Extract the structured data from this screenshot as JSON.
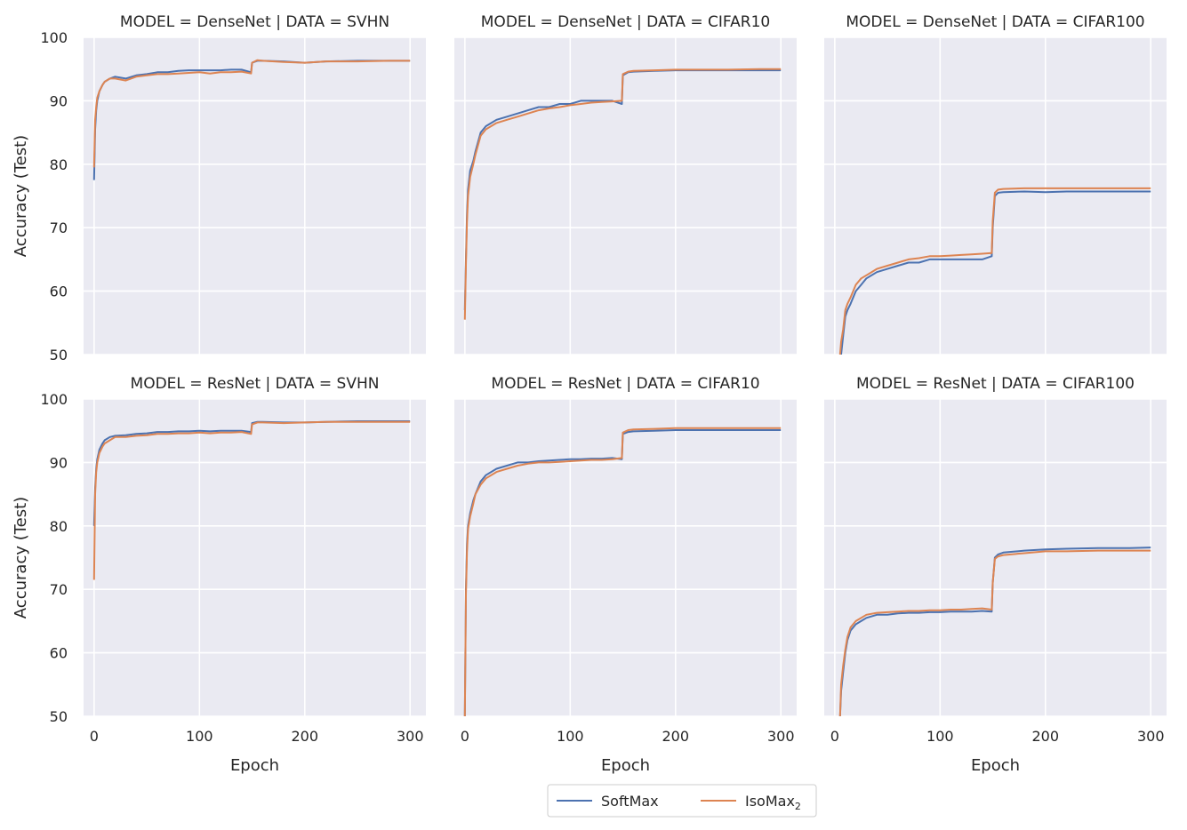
{
  "colors": {
    "softmax": "#4c72b0",
    "isomax": "#dd8452",
    "panel_bg": "#eaeaf2",
    "grid": "#ffffff"
  },
  "legend": {
    "softmax": "SoftMax",
    "isomax_base": "IsoMax",
    "isomax_sub": "2"
  },
  "chart_data": [
    {
      "type": "line",
      "title": "MODEL = DenseNet | DATA = SVHN",
      "xlabel": "",
      "ylabel": "Accuracy (Test)",
      "xlim": [
        -10,
        315
      ],
      "ylim": [
        50,
        100
      ],
      "series": [
        {
          "name": "SoftMax",
          "x": [
            0,
            1,
            2,
            3,
            5,
            8,
            10,
            15,
            20,
            30,
            40,
            50,
            60,
            70,
            80,
            90,
            100,
            110,
            120,
            130,
            140,
            149,
            150,
            155,
            160,
            180,
            200,
            220,
            250,
            280,
            300
          ],
          "values": [
            77.5,
            85.5,
            88.5,
            90,
            91.5,
            92.5,
            93,
            93.5,
            93.8,
            93.5,
            94,
            94.2,
            94.5,
            94.5,
            94.7,
            94.8,
            94.8,
            94.8,
            94.8,
            94.9,
            94.9,
            94.5,
            96,
            96.3,
            96.3,
            96.2,
            96,
            96.2,
            96.3,
            96.3,
            96.3
          ]
        },
        {
          "name": "IsoMax2",
          "x": [
            0,
            1,
            2,
            3,
            5,
            8,
            10,
            15,
            20,
            30,
            40,
            50,
            60,
            70,
            80,
            90,
            100,
            110,
            120,
            130,
            140,
            149,
            150,
            155,
            160,
            180,
            200,
            220,
            250,
            280,
            300
          ],
          "values": [
            79.5,
            87,
            89,
            90.5,
            91.5,
            92.5,
            93,
            93.5,
            93.5,
            93.2,
            93.8,
            94,
            94.2,
            94.2,
            94.3,
            94.4,
            94.5,
            94.3,
            94.5,
            94.5,
            94.6,
            94.3,
            96,
            96.4,
            96.3,
            96.1,
            96,
            96.2,
            96.2,
            96.3,
            96.3
          ]
        }
      ]
    },
    {
      "type": "line",
      "title": "MODEL = DenseNet | DATA = CIFAR10",
      "xlabel": "",
      "ylabel": "",
      "xlim": [
        -10,
        315
      ],
      "ylim": [
        50,
        100
      ],
      "series": [
        {
          "name": "SoftMax",
          "x": [
            0,
            1,
            2,
            3,
            5,
            8,
            10,
            15,
            20,
            30,
            40,
            50,
            60,
            70,
            80,
            90,
            100,
            110,
            120,
            130,
            140,
            149,
            150,
            155,
            160,
            180,
            200,
            220,
            250,
            280,
            300
          ],
          "values": [
            57,
            65,
            72,
            76,
            79,
            80.5,
            82,
            85,
            86,
            87,
            87.5,
            88,
            88.5,
            89,
            89,
            89.5,
            89.5,
            90,
            90,
            90,
            90,
            89.5,
            94,
            94.5,
            94.6,
            94.7,
            94.8,
            94.8,
            94.8,
            94.8,
            94.8
          ]
        },
        {
          "name": "IsoMax2",
          "x": [
            0,
            1,
            2,
            3,
            5,
            8,
            10,
            15,
            20,
            30,
            40,
            50,
            60,
            70,
            80,
            90,
            100,
            110,
            120,
            130,
            140,
            149,
            150,
            155,
            160,
            180,
            200,
            220,
            250,
            280,
            300
          ],
          "values": [
            55.5,
            64,
            71,
            75,
            78,
            80,
            81.5,
            84.5,
            85.5,
            86.5,
            87,
            87.5,
            88,
            88.5,
            88.8,
            89,
            89.3,
            89.5,
            89.7,
            89.8,
            89.9,
            90,
            94.2,
            94.6,
            94.7,
            94.8,
            94.9,
            94.9,
            94.9,
            95,
            95
          ]
        }
      ]
    },
    {
      "type": "line",
      "title": "MODEL = DenseNet | DATA = CIFAR100",
      "xlabel": "",
      "ylabel": "",
      "xlim": [
        -10,
        315
      ],
      "ylim": [
        50,
        100
      ],
      "series": [
        {
          "name": "SoftMax",
          "x": [
            5,
            6,
            8,
            10,
            12,
            15,
            20,
            25,
            30,
            40,
            50,
            60,
            70,
            80,
            90,
            100,
            110,
            120,
            130,
            140,
            149,
            150,
            152,
            155,
            160,
            180,
            200,
            220,
            250,
            280,
            300
          ],
          "values": [
            48,
            50,
            53,
            56,
            57,
            58,
            60,
            61,
            62,
            63,
            63.5,
            64,
            64.5,
            64.5,
            65,
            65,
            65,
            65,
            65,
            65,
            65.5,
            70,
            75,
            75.5,
            75.6,
            75.7,
            75.6,
            75.7,
            75.7,
            75.7,
            75.7
          ]
        },
        {
          "name": "IsoMax2",
          "x": [
            5,
            6,
            8,
            10,
            12,
            15,
            20,
            25,
            30,
            40,
            50,
            60,
            70,
            80,
            90,
            100,
            110,
            120,
            130,
            140,
            149,
            150,
            152,
            155,
            160,
            180,
            200,
            220,
            250,
            280,
            300
          ],
          "values": [
            50,
            52,
            54,
            57,
            58,
            59,
            61,
            62,
            62.5,
            63.5,
            64,
            64.5,
            65,
            65.2,
            65.5,
            65.5,
            65.6,
            65.7,
            65.8,
            65.9,
            66,
            71,
            75.5,
            76,
            76.1,
            76.2,
            76.2,
            76.2,
            76.2,
            76.2,
            76.2
          ]
        }
      ]
    },
    {
      "type": "line",
      "title": "MODEL = ResNet | DATA = SVHN",
      "xlabel": "Epoch",
      "ylabel": "Accuracy (Test)",
      "xlim": [
        -10,
        315
      ],
      "ylim": [
        50,
        100
      ],
      "series": [
        {
          "name": "SoftMax",
          "x": [
            0,
            1,
            2,
            3,
            5,
            8,
            10,
            15,
            20,
            30,
            40,
            50,
            60,
            70,
            80,
            90,
            100,
            110,
            120,
            130,
            140,
            149,
            150,
            155,
            160,
            180,
            200,
            220,
            250,
            280,
            300
          ],
          "values": [
            80,
            86,
            89,
            90.5,
            92,
            93,
            93.5,
            94,
            94.2,
            94.3,
            94.5,
            94.6,
            94.8,
            94.8,
            94.9,
            94.9,
            95,
            94.9,
            95,
            95,
            95,
            94.8,
            96.2,
            96.4,
            96.4,
            96.3,
            96.3,
            96.4,
            96.5,
            96.5,
            96.5
          ]
        },
        {
          "name": "IsoMax2",
          "x": [
            0,
            1,
            2,
            3,
            5,
            8,
            10,
            15,
            20,
            30,
            40,
            50,
            60,
            70,
            80,
            90,
            100,
            110,
            120,
            130,
            140,
            149,
            150,
            155,
            160,
            180,
            200,
            220,
            250,
            280,
            300
          ],
          "values": [
            71.5,
            85,
            88.5,
            90,
            91.5,
            92.5,
            93,
            93.5,
            94,
            94,
            94.2,
            94.3,
            94.5,
            94.5,
            94.6,
            94.6,
            94.7,
            94.6,
            94.7,
            94.7,
            94.8,
            94.5,
            96,
            96.3,
            96.3,
            96.2,
            96.3,
            96.4,
            96.4,
            96.4,
            96.4
          ]
        }
      ]
    },
    {
      "type": "line",
      "title": "MODEL = ResNet | DATA = CIFAR10",
      "xlabel": "Epoch",
      "ylabel": "",
      "xlim": [
        -10,
        315
      ],
      "ylim": [
        50,
        100
      ],
      "series": [
        {
          "name": "SoftMax",
          "x": [
            0,
            1,
            2,
            3,
            5,
            8,
            10,
            15,
            20,
            30,
            40,
            50,
            60,
            70,
            80,
            90,
            100,
            110,
            120,
            130,
            140,
            149,
            150,
            155,
            160,
            180,
            200,
            220,
            250,
            280,
            300
          ],
          "values": [
            50,
            70,
            77,
            80,
            82,
            84,
            85,
            87,
            88,
            89,
            89.5,
            90,
            90,
            90.2,
            90.3,
            90.4,
            90.5,
            90.5,
            90.6,
            90.6,
            90.7,
            90.5,
            94.5,
            94.8,
            94.9,
            95,
            95.1,
            95.1,
            95.1,
            95.1,
            95.1
          ]
        },
        {
          "name": "IsoMax2",
          "x": [
            0,
            1,
            2,
            3,
            5,
            8,
            10,
            15,
            20,
            30,
            40,
            50,
            60,
            70,
            80,
            90,
            100,
            110,
            120,
            130,
            140,
            149,
            150,
            155,
            160,
            180,
            200,
            220,
            250,
            280,
            300
          ],
          "values": [
            50,
            69,
            76,
            79.5,
            81.5,
            83.5,
            85,
            86.5,
            87.5,
            88.5,
            89,
            89.5,
            89.8,
            90,
            90,
            90.1,
            90.2,
            90.3,
            90.4,
            90.4,
            90.5,
            90.7,
            94.7,
            95.1,
            95.2,
            95.3,
            95.4,
            95.4,
            95.4,
            95.4,
            95.4
          ]
        }
      ]
    },
    {
      "type": "line",
      "title": "MODEL = ResNet | DATA = CIFAR100",
      "xlabel": "Epoch",
      "ylabel": "",
      "xlim": [
        -10,
        315
      ],
      "ylim": [
        50,
        100
      ],
      "series": [
        {
          "name": "SoftMax",
          "x": [
            5,
            6,
            8,
            10,
            12,
            15,
            20,
            25,
            30,
            40,
            50,
            60,
            70,
            80,
            90,
            100,
            110,
            120,
            130,
            140,
            149,
            150,
            152,
            155,
            160,
            180,
            200,
            220,
            250,
            280,
            300
          ],
          "values": [
            50,
            54,
            57,
            60,
            62,
            63.5,
            64.5,
            65,
            65.5,
            66,
            66,
            66.2,
            66.3,
            66.3,
            66.4,
            66.4,
            66.5,
            66.5,
            66.5,
            66.6,
            66.5,
            71,
            75,
            75.5,
            75.8,
            76.1,
            76.3,
            76.4,
            76.5,
            76.5,
            76.6
          ]
        },
        {
          "name": "IsoMax2",
          "x": [
            5,
            6,
            8,
            10,
            12,
            15,
            20,
            25,
            30,
            40,
            50,
            60,
            70,
            80,
            90,
            100,
            110,
            120,
            130,
            140,
            149,
            150,
            152,
            155,
            160,
            180,
            200,
            220,
            250,
            280,
            300
          ],
          "values": [
            50,
            55,
            58,
            60.5,
            62.5,
            64,
            65,
            65.5,
            66,
            66.3,
            66.4,
            66.5,
            66.6,
            66.6,
            66.7,
            66.7,
            66.8,
            66.8,
            66.9,
            67,
            66.8,
            71,
            74.8,
            75.2,
            75.4,
            75.7,
            76,
            76,
            76.1,
            76.1,
            76.1
          ]
        }
      ]
    }
  ],
  "x_ticks": [
    0,
    100,
    200,
    300
  ],
  "y_ticks": [
    50,
    60,
    70,
    80,
    90,
    100
  ]
}
